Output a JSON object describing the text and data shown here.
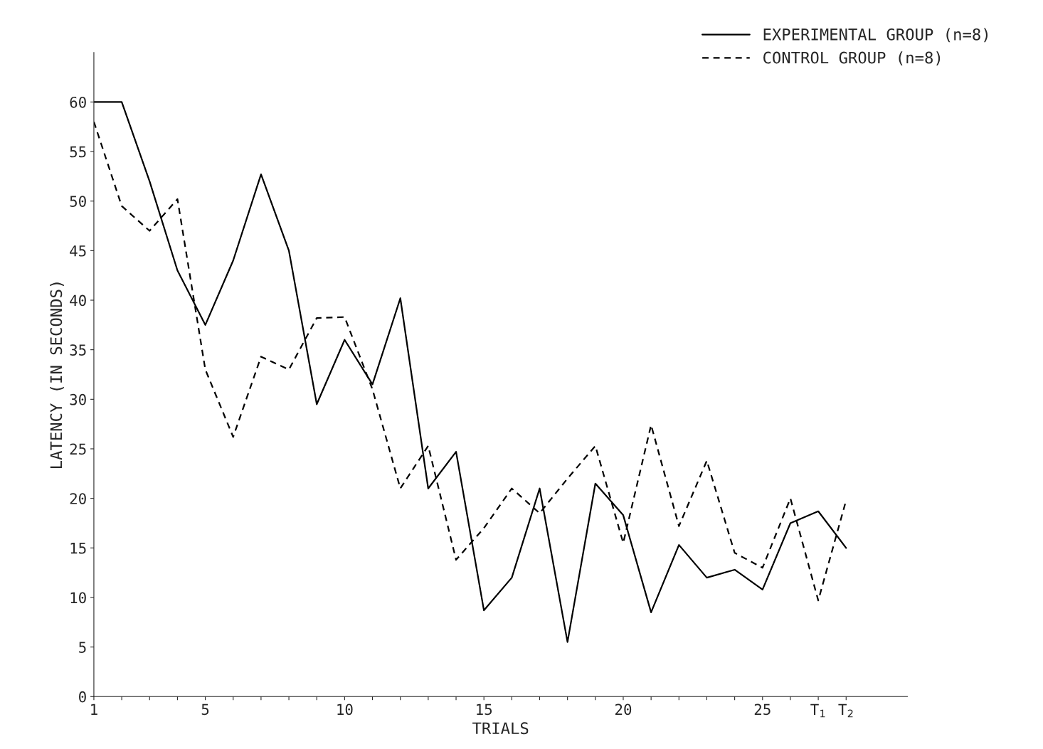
{
  "chart_data": {
    "type": "line",
    "xlabel": "TRIALS",
    "ylabel": "LATENCY (IN SECONDS)",
    "categories": [
      "1",
      null,
      null,
      null,
      "5",
      null,
      null,
      null,
      null,
      "10",
      null,
      null,
      null,
      null,
      "15",
      null,
      null,
      null,
      null,
      "20",
      null,
      null,
      null,
      null,
      "25",
      null,
      "T$_{1}$",
      "T$_{2}$"
    ],
    "series": [
      {
        "name": "EXPERIMENTAL GROUP (n=8)",
        "color": "#000000",
        "line_style": "solid",
        "values": [
          60,
          60,
          52,
          43,
          37.5,
          44,
          52.7,
          45,
          29.5,
          36,
          31.5,
          40.2,
          21,
          24.7,
          8.7,
          12,
          21,
          5.5,
          21.5,
          18.3,
          8.5,
          15.3,
          12,
          12.8,
          10.8,
          17.5,
          18.7,
          15
        ]
      },
      {
        "name": "CONTROL GROUP (n=8)",
        "color": "#000000",
        "line_style": "dashed",
        "values": [
          58,
          49.5,
          47,
          50.2,
          33,
          26.2,
          34.3,
          33,
          38.2,
          38.3,
          31,
          21,
          25.3,
          13.8,
          17,
          21,
          18.5,
          22,
          25.3,
          15.5,
          27.4,
          17.2,
          23.8,
          14.5,
          13,
          20,
          9.7,
          19.8
        ]
      }
    ],
    "ylim": [
      0,
      65
    ],
    "yticks": [
      0,
      5,
      10,
      15,
      20,
      25,
      30,
      35,
      40,
      45,
      50,
      55,
      60
    ],
    "grid": false,
    "legend": "top right",
    "marker": "none"
  }
}
